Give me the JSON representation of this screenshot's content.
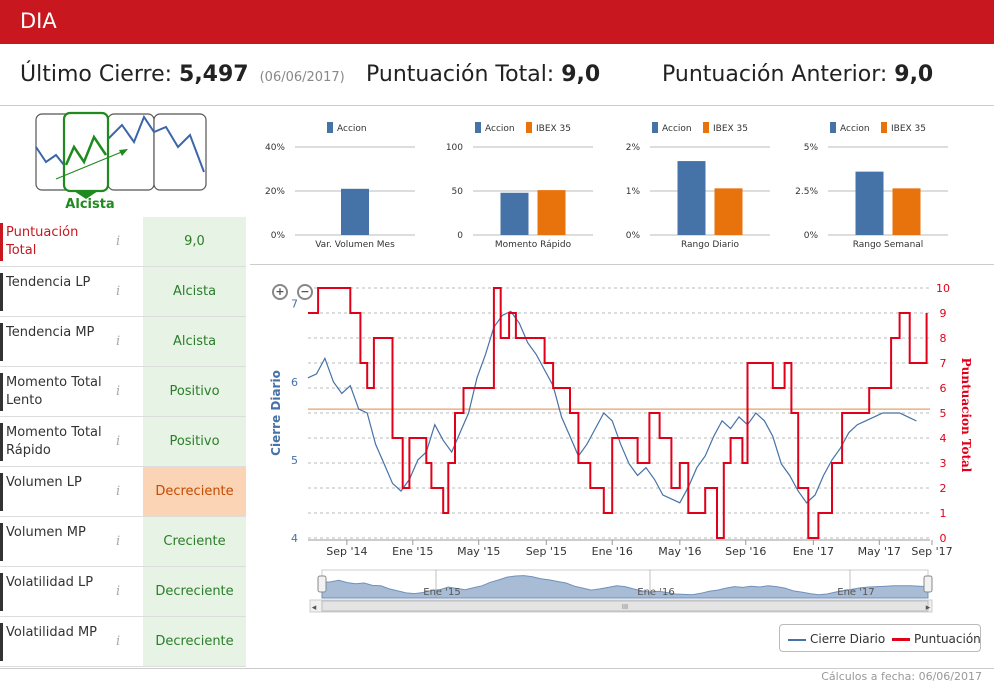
{
  "header": {
    "ticker": "DIA"
  },
  "summary": {
    "last_close_label": "Último Cierre:",
    "last_close_value": "5,497",
    "last_close_date": "(06/06/2017)",
    "total_score_label": "Puntuación Total:",
    "total_score_value": "9,0",
    "prev_score_label": "Puntuación Anterior:",
    "prev_score_value": "9,0"
  },
  "trend": {
    "label": "Alcista",
    "icon": "trend-up-icon"
  },
  "indicators": [
    {
      "name": "Puntuación Total",
      "value": "9,0",
      "status": "ok"
    },
    {
      "name": "Tendencia LP",
      "value": "Alcista",
      "status": "ok"
    },
    {
      "name": "Tendencia MP",
      "value": "Alcista",
      "status": "ok"
    },
    {
      "name": "Momento Total Lento",
      "value": "Positivo",
      "status": "ok"
    },
    {
      "name": "Momento Total Rápido",
      "value": "Positivo",
      "status": "ok"
    },
    {
      "name": "Volumen LP",
      "value": "Decreciente",
      "status": "warn"
    },
    {
      "name": "Volumen MP",
      "value": "Creciente",
      "status": "ok"
    },
    {
      "name": "Volatilidad LP",
      "value": "Decreciente",
      "status": "ok"
    },
    {
      "name": "Volatilidad MP",
      "value": "Decreciente",
      "status": "ok"
    }
  ],
  "info_symbol": "i",
  "colors": {
    "accion": "#4572a7",
    "ibex": "#e8720c",
    "score": "#e0001a",
    "brand": "#c8171e"
  },
  "chart_data": [
    {
      "type": "bar",
      "title": "Var. Volumen Mes",
      "legend": [
        "Accion"
      ],
      "categories": [
        "Var. Volumen Mes"
      ],
      "series": [
        {
          "name": "Accion",
          "values": [
            21
          ]
        }
      ],
      "yticks": [
        "0%",
        "20%",
        "40%"
      ],
      "ylim": [
        0,
        40
      ]
    },
    {
      "type": "bar",
      "title": "Momento Rápido",
      "legend": [
        "Accion",
        "IBEX 35"
      ],
      "categories": [
        "Momento Rápido"
      ],
      "series": [
        {
          "name": "Accion",
          "values": [
            48
          ]
        },
        {
          "name": "IBEX 35",
          "values": [
            51
          ]
        }
      ],
      "yticks": [
        "0",
        "50",
        "100"
      ],
      "ylim": [
        0,
        100
      ]
    },
    {
      "type": "bar",
      "title": "Rango Diario",
      "legend": [
        "Accion",
        "IBEX 35"
      ],
      "categories": [
        "Rango Diario"
      ],
      "series": [
        {
          "name": "Accion",
          "values": [
            1.68
          ]
        },
        {
          "name": "IBEX 35",
          "values": [
            1.06
          ]
        }
      ],
      "yticks": [
        "0%",
        "1%",
        "2%"
      ],
      "ylim": [
        0,
        2
      ]
    },
    {
      "type": "bar",
      "title": "Rango Semanal",
      "legend": [
        "Accion",
        "IBEX 35"
      ],
      "categories": [
        "Rango Semanal"
      ],
      "series": [
        {
          "name": "Accion",
          "values": [
            3.6
          ]
        },
        {
          "name": "IBEX 35",
          "values": [
            2.65
          ]
        }
      ],
      "yticks": [
        "0%",
        "2.5%",
        "5%"
      ],
      "ylim": [
        0,
        5
      ]
    },
    {
      "type": "line",
      "ylabel_left": "Cierre Diario",
      "ylabel_right": "Puntuacion Total",
      "ylim_left": [
        4,
        7.2
      ],
      "ylim_right": [
        0,
        10
      ],
      "yticks_left": [
        "4",
        "5",
        "6",
        "7"
      ],
      "yticks_right": [
        "0",
        "1",
        "2",
        "3",
        "4",
        "5",
        "6",
        "7",
        "8",
        "9",
        "10"
      ],
      "xticks": [
        "Sep '14",
        "Ene '15",
        "May '15",
        "Sep '15",
        "Ene '16",
        "May '16",
        "Sep '16",
        "Ene '17",
        "May '17",
        "Sep '17"
      ],
      "navigator_labels": [
        "Ene '15",
        "Ene '16",
        "Ene '17"
      ],
      "reference_line": 5.65,
      "legend": [
        "Cierre Diario",
        "Puntuación"
      ],
      "series": [
        {
          "name": "Cierre Diario",
          "t": [
            0,
            0.5,
            1,
            1.5,
            2,
            2.5,
            3,
            3.5,
            4,
            4.5,
            5,
            5.5,
            6,
            6.5,
            7,
            7.5,
            8,
            8.5,
            9,
            9.5,
            10,
            10.5,
            11,
            11.5,
            12,
            12.5,
            13,
            13.5,
            14,
            14.5,
            15,
            15.5,
            16,
            16.5,
            17,
            17.5,
            18,
            18.5,
            19,
            19.5,
            20,
            20.5,
            21,
            21.5,
            22,
            22.5,
            23,
            23.5,
            24,
            24.5,
            25,
            25.5,
            26,
            26.5,
            27,
            27.5,
            28,
            28.5,
            29,
            29.5,
            30,
            30.5,
            31,
            31.5,
            32,
            32.5,
            33,
            33.5,
            34,
            34.5,
            35,
            35.5,
            36
          ],
          "values": [
            6.05,
            6.1,
            6.3,
            6.0,
            5.85,
            5.95,
            5.65,
            5.6,
            5.2,
            4.95,
            4.7,
            4.6,
            4.75,
            5.0,
            5.1,
            5.45,
            5.25,
            5.1,
            5.35,
            5.6,
            6.05,
            6.35,
            6.7,
            6.85,
            6.9,
            6.75,
            6.5,
            6.35,
            6.15,
            5.95,
            5.55,
            5.3,
            5.05,
            5.2,
            5.4,
            5.6,
            5.5,
            5.2,
            4.95,
            4.8,
            4.9,
            4.75,
            4.55,
            4.5,
            4.45,
            4.65,
            4.9,
            5.05,
            5.3,
            5.5,
            5.4,
            5.55,
            5.45,
            5.6,
            5.5,
            5.3,
            4.95,
            4.8,
            4.6,
            4.45,
            4.55,
            4.8,
            5.0,
            5.15,
            5.35,
            5.45,
            5.5,
            5.55,
            5.6,
            5.6,
            5.6,
            5.55,
            5.497
          ]
        },
        {
          "name": "Puntuación",
          "t": [
            0,
            0.6,
            0.6,
            2.5,
            2.5,
            3.1,
            3.1,
            3.5,
            3.5,
            3.9,
            3.9,
            5.0,
            5.0,
            5.6,
            5.6,
            6.0,
            6.0,
            7.0,
            7.0,
            7.3,
            7.3,
            8.0,
            8.0,
            8.3,
            8.3,
            8.7,
            8.7,
            9.2,
            9.2,
            11.0,
            11.0,
            11.4,
            11.4,
            11.9,
            11.9,
            12.3,
            12.3,
            14.0,
            14.0,
            14.5,
            14.5,
            15.5,
            15.5,
            16.0,
            16.0,
            16.7,
            16.7,
            17.5,
            17.5,
            18.0,
            18.0,
            19.5,
            19.5,
            20.2,
            20.2,
            20.8,
            20.8,
            21.5,
            21.5,
            22.0,
            22.0,
            22.5,
            22.5,
            23.5,
            23.5,
            24.2,
            24.2,
            24.6,
            24.6,
            25.0,
            25.0,
            25.7,
            25.7,
            26.0,
            26.0,
            27.5,
            27.5,
            28.2,
            28.2,
            28.6,
            28.6,
            29.0,
            29.0,
            29.6,
            29.6,
            30.2,
            30.2,
            31.0,
            31.0,
            31.6,
            31.6,
            33.2,
            33.2,
            34.5,
            34.5,
            35.0,
            35.0,
            35.6,
            35.6,
            36.6,
            36.6
          ],
          "values": [
            9,
            9,
            10,
            10,
            9,
            9,
            7,
            7,
            6,
            6,
            8,
            8,
            4,
            4,
            2,
            2,
            4,
            4,
            3,
            3,
            2,
            2,
            1,
            1,
            3,
            3,
            5,
            5,
            6,
            6,
            10,
            10,
            8,
            8,
            9,
            9,
            8,
            8,
            7,
            7,
            6,
            6,
            5,
            5,
            3,
            3,
            2,
            2,
            1,
            1,
            4,
            4,
            3,
            3,
            5,
            5,
            4,
            4,
            2,
            2,
            3,
            3,
            1,
            1,
            2,
            2,
            0,
            0,
            3,
            3,
            4,
            4,
            3,
            3,
            7,
            7,
            6,
            6,
            7,
            7,
            5,
            5,
            2,
            2,
            0,
            0,
            1,
            1,
            3,
            3,
            5,
            5,
            6,
            6,
            8,
            8,
            9,
            9,
            7,
            7,
            9
          ]
        }
      ]
    }
  ],
  "footer": {
    "note": "Cálculos a fecha: 06/06/2017"
  },
  "controls": {
    "zoom_in": "+",
    "zoom_out": "−",
    "scroll_left": "◂",
    "scroll_right": "▸",
    "scroll_grip": "III"
  }
}
